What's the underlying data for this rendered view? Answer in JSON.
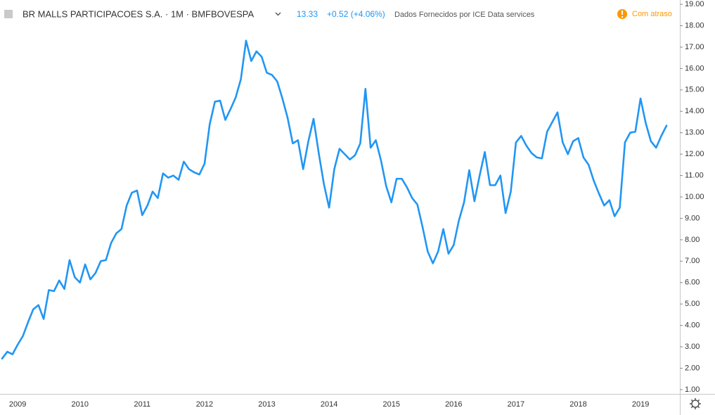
{
  "chart_data": {
    "type": "line",
    "title": "BR MALLS PARTICIPACOES S.A. · 1M · BMFBOVESPA",
    "change": "+0.52 (+4.06%)",
    "source": "Dados Fornecidos por ICE Data services",
    "status": "Com atraso",
    "color": "#2196f3",
    "categories": [
      null,
      null,
      null,
      "2009",
      null,
      null,
      null,
      null,
      null,
      null,
      null,
      null,
      null,
      null,
      null,
      "2010",
      null,
      null,
      null,
      null,
      null,
      null,
      null,
      null,
      null,
      null,
      null,
      "2011",
      null,
      null,
      null,
      null,
      null,
      null,
      null,
      null,
      null,
      null,
      null,
      "2012",
      null,
      null,
      null,
      null,
      null,
      null,
      null,
      null,
      null,
      null,
      null,
      "2013",
      null,
      null,
      null,
      null,
      null,
      null,
      null,
      null,
      null,
      null,
      null,
      "2014",
      null,
      null,
      null,
      null,
      null,
      null,
      null,
      null,
      null,
      null,
      null,
      "2015",
      null,
      null,
      null,
      null,
      null,
      null,
      null,
      null,
      null,
      null,
      null,
      "2016",
      null,
      null,
      null,
      null,
      null,
      null,
      null,
      null,
      null,
      null,
      null,
      "2017",
      null,
      null,
      null,
      null,
      null,
      null,
      null,
      null,
      null,
      null,
      null,
      "2018",
      null,
      null,
      null,
      null,
      null,
      null,
      null,
      null,
      null,
      null,
      null,
      "2019",
      null,
      null,
      null,
      null,
      null
    ],
    "values": [
      2.45,
      2.77,
      2.65,
      3.1,
      3.5,
      4.15,
      4.75,
      4.95,
      4.3,
      5.65,
      5.6,
      6.1,
      5.7,
      7.05,
      6.25,
      6.0,
      6.85,
      6.15,
      6.45,
      7.0,
      7.05,
      7.85,
      8.3,
      8.5,
      9.6,
      10.2,
      10.3,
      9.15,
      9.6,
      10.25,
      9.95,
      11.1,
      10.9,
      11.0,
      10.8,
      11.65,
      11.3,
      11.15,
      11.05,
      11.55,
      13.4,
      14.45,
      14.5,
      13.6,
      14.1,
      14.65,
      15.5,
      17.3,
      16.35,
      16.8,
      16.55,
      15.8,
      15.7,
      15.4,
      14.6,
      13.7,
      12.5,
      12.65,
      11.3,
      12.6,
      13.65,
      12.05,
      10.6,
      9.5,
      11.3,
      12.25,
      12.0,
      11.75,
      11.95,
      12.5,
      15.05,
      12.3,
      12.65,
      11.7,
      10.5,
      9.75,
      10.85,
      10.85,
      10.45,
      9.95,
      9.65,
      8.6,
      7.45,
      6.9,
      7.45,
      8.5,
      7.35,
      7.75,
      8.9,
      9.75,
      11.25,
      9.8,
      11.0,
      12.1,
      10.55,
      10.55,
      11.0,
      9.25,
      10.25,
      12.55,
      12.85,
      12.4,
      12.05,
      11.85,
      11.8,
      13.05,
      13.5,
      13.95,
      12.55,
      12.0,
      12.6,
      12.75,
      11.85,
      11.5,
      10.75,
      10.15,
      9.6,
      9.85,
      9.1,
      9.5,
      12.55,
      13.0,
      13.05,
      14.6,
      13.45,
      12.6,
      12.3,
      12.85,
      13.33
    ],
    "ylim": [
      0.8,
      19.2
    ],
    "yticks": [
      {
        "value": 1,
        "label": "1.00"
      },
      {
        "value": 2,
        "label": "2.00"
      },
      {
        "value": 3,
        "label": "3.00"
      },
      {
        "value": 4,
        "label": "4.00"
      },
      {
        "value": 5,
        "label": "5.00"
      },
      {
        "value": 6,
        "label": "6.00"
      },
      {
        "value": 7,
        "label": "7.00"
      },
      {
        "value": 8,
        "label": "8.00"
      },
      {
        "value": 9,
        "label": "9.00"
      },
      {
        "value": 10,
        "label": "10.00"
      },
      {
        "value": 11,
        "label": "11.00"
      },
      {
        "value": 12,
        "label": "12.00"
      },
      {
        "value": 13,
        "label": "13.00"
      },
      {
        "value": 14,
        "label": "14.00"
      },
      {
        "value": 15,
        "label": "15.00"
      },
      {
        "value": 16,
        "label": "16.00"
      },
      {
        "value": 17,
        "label": "17.00"
      },
      {
        "value": 18,
        "label": "18.00"
      },
      {
        "value": 19,
        "label": "19.00"
      }
    ],
    "grid": false
  }
}
